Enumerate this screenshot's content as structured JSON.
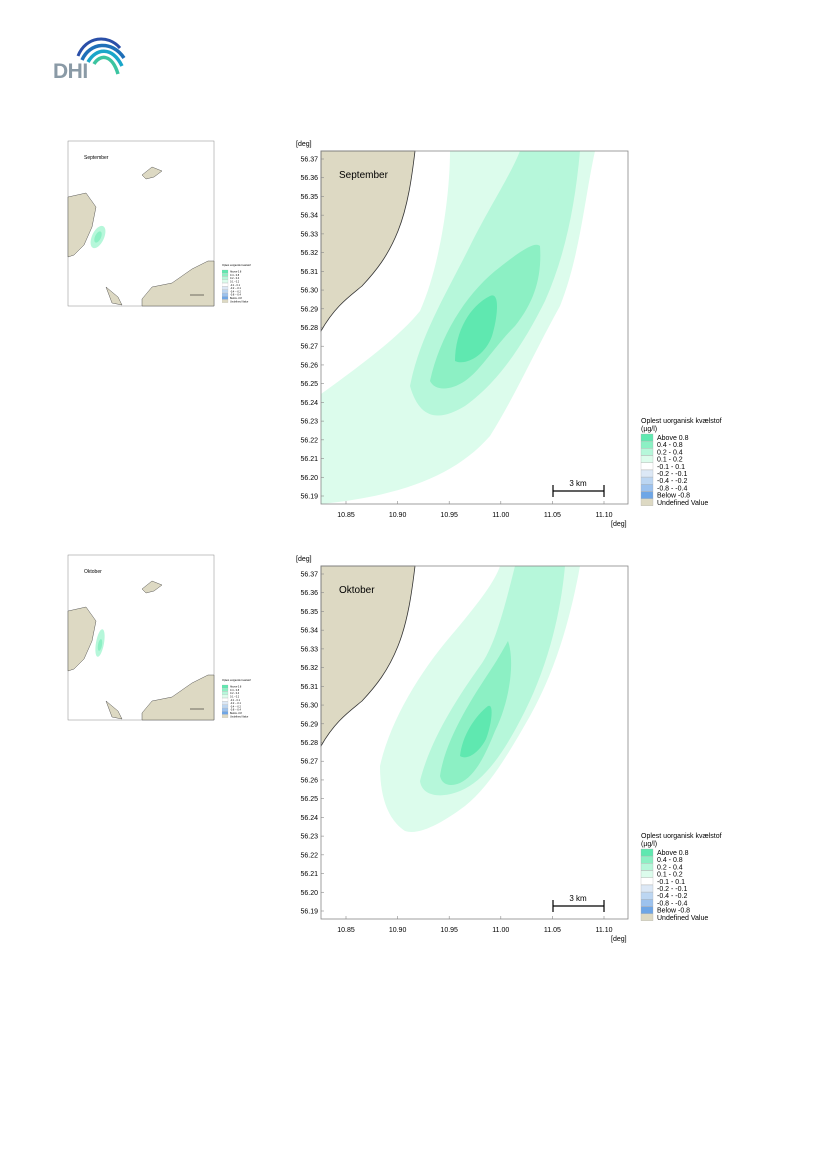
{
  "logo": {
    "text": "DHI"
  },
  "maps": [
    {
      "month_label": "September",
      "y_unit": "[deg]",
      "x_unit": "[deg]",
      "y_ticks": [
        "56.37",
        "56.36",
        "56.35",
        "56.34",
        "56.33",
        "56.32",
        "56.31",
        "56.30",
        "56.29",
        "56.28",
        "56.27",
        "56.26",
        "56.25",
        "56.24",
        "56.23",
        "56.22",
        "56.21",
        "56.20",
        "56.19"
      ],
      "x_ticks": [
        "10.85",
        "10.90",
        "10.95",
        "11.00",
        "11.05",
        "11.10"
      ],
      "scale_bar": "3 km"
    },
    {
      "month_label": "Oktober",
      "y_unit": "[deg]",
      "x_unit": "[deg]",
      "y_ticks": [
        "56.37",
        "56.36",
        "56.35",
        "56.34",
        "56.33",
        "56.32",
        "56.31",
        "56.30",
        "56.29",
        "56.28",
        "56.27",
        "56.26",
        "56.25",
        "56.24",
        "56.23",
        "56.22",
        "56.21",
        "56.20",
        "56.19"
      ],
      "x_ticks": [
        "10.85",
        "10.90",
        "10.95",
        "11.00",
        "11.05",
        "11.10"
      ],
      "scale_bar": "3 km"
    }
  ],
  "legend": {
    "title": "Oplest uorganisk kvælstof",
    "unit": "(µg/l)",
    "entries": [
      {
        "label": "Above  0.8",
        "color": "#5fe8b0"
      },
      {
        "label": "0.4 -  0.8",
        "color": "#8cf0c4"
      },
      {
        "label": "0.2 -  0.4",
        "color": "#b6f7da"
      },
      {
        "label": "0.1 -  0.2",
        "color": "#dcfcec"
      },
      {
        "label": "-0.1 -  0.1",
        "color": "#ffffff"
      },
      {
        "label": "-0.2 - -0.1",
        "color": "#dce8f6"
      },
      {
        "label": "-0.4 - -0.2",
        "color": "#bcd6f2"
      },
      {
        "label": "-0.8 - -0.4",
        "color": "#9cc2ee"
      },
      {
        "label": "Below -0.8",
        "color": "#6ea6e6"
      },
      {
        "label": "Undefined Value",
        "color": "#ddd9c3"
      }
    ]
  },
  "colors": {
    "land": "#ddd9c3",
    "coast": "#333333",
    "frame": "#888888"
  }
}
